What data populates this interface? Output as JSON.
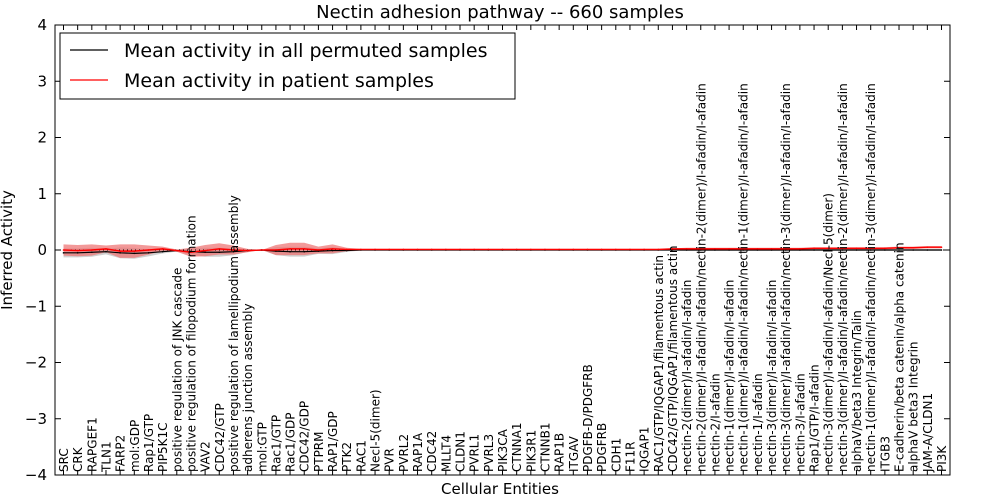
{
  "chart_data": {
    "type": "line",
    "title": "Nectin adhesion pathway -- 660 samples",
    "xlabel": "Cellular Entities",
    "ylabel": "Inferred Activity",
    "ylim": [
      -4,
      4
    ],
    "yticks": [
      -4,
      -3,
      -2,
      -1,
      0,
      1,
      2,
      3,
      4
    ],
    "legend_position": "upper-left",
    "colors": {
      "permuted": "#000000",
      "patient": "#ff0000",
      "band": "#ee7777",
      "band_permuted": "#b0b0b0"
    },
    "categories": [
      "SRC",
      "CRK",
      "RAPGEF1",
      "TLN1",
      "FARP2",
      "mol:GDP",
      "Rap1/GTP",
      "PIP5K1C",
      "positive regulation of JNK cascade",
      "positive regulation of filopodium formation",
      "VAV2",
      "CDC42/GTP",
      "positive regulation of lamellipodium assembly",
      "adherens junction assembly",
      "mol:GTP",
      "Rac1/GTP",
      "Rac1/GDP",
      "CDC42/GDP",
      "PTPRM",
      "RAP1/GDP",
      "PTK2",
      "RAC1",
      "Necl-5(dimer)",
      "PVR",
      "PVRL2",
      "RAP1A",
      "CDC42",
      "MLLT4",
      "CLDN1",
      "PVRL1",
      "PVRL3",
      "PIK3CA",
      "CTNNA1",
      "PIK3R1",
      "CTNNB1",
      "RAP1B",
      "ITGAV",
      "PDGFB-D/PDGFRB",
      "PDGFRB",
      "CDH1",
      "F11R",
      "IQGAP1",
      "RAC1/GTP/IQGAP1/filamentous actin",
      "CDC42/GTP/IQGAP1/filamentous actin",
      "nectin-2(dimer)/I-afadin/I-afadin",
      "nectin-2(dimer)/I-afadin/I-afadin/nectin-2(dimer)/I-afadin/I-afadin",
      "nectin-2/I-afadin",
      "nectin-1(dimer)/I-afadin/I-afadin",
      "nectin-1(dimer)/I-afadin/I-afadin/nectin-1(dimer)/I-afadin/I-afadin",
      "nectin-1/I-afadin",
      "nectin-3(dimer)/I-afadin/I-afadin",
      "nectin-3(dimer)/I-afadin/I-afadin/nectin-3(dimer)/I-afadin/I-afadin",
      "nectin-3/I-afadin",
      "Rap1/GTP/I-afadin",
      "nectin-3(dimer)/I-afadin/I-afadin/Necl-5(dimer)",
      "nectin-3(dimer)/I-afadin/I-afadin/nectin-2(dimer)/I-afadin/I-afadin",
      "alphaV/beta3 Integrin/Talin",
      "nectin-1(dimer)/I-afadin/I-afadin/nectin-3(dimer)/I-afadin/I-afadin",
      "ITGB3",
      "E-cadherin/beta catenin/alpha catenin",
      "alphaV beta3 Integrin",
      "JAM-A/CLDN1",
      "PI3K"
    ],
    "series": [
      {
        "name": "Mean activity in all permuted samples",
        "values": [
          -0.05,
          -0.05,
          -0.04,
          -0.03,
          -0.05,
          -0.06,
          -0.05,
          -0.03,
          -0.01,
          -0.03,
          -0.04,
          -0.04,
          -0.03,
          -0.01,
          0.0,
          -0.02,
          -0.03,
          -0.03,
          -0.02,
          -0.01,
          -0.01,
          0,
          0,
          0,
          0,
          0,
          0,
          0,
          0,
          0,
          0,
          0,
          0,
          0,
          0,
          0,
          0,
          0,
          0,
          0,
          0,
          0,
          0,
          0,
          0,
          0,
          0,
          0,
          0,
          0,
          0,
          0,
          0,
          0,
          0,
          0,
          0,
          0,
          0,
          0,
          0,
          0,
          0
        ]
      },
      {
        "name": "Mean activity in patient samples",
        "values": [
          0.0,
          -0.01,
          0.0,
          0.02,
          -0.02,
          -0.02,
          0.0,
          0.02,
          -0.01,
          -0.04,
          -0.01,
          0.02,
          0.0,
          -0.01,
          0.0,
          0.0,
          0.02,
          0.02,
          0.0,
          0.02,
          0.01,
          0.01,
          0.01,
          0.01,
          0.01,
          0.01,
          0.01,
          0.01,
          0.01,
          0.01,
          0.01,
          0.01,
          0.01,
          0.01,
          0.01,
          0.01,
          0.01,
          0.01,
          0.01,
          0.01,
          0.01,
          0.01,
          0.01,
          0.02,
          0.02,
          0.02,
          0.02,
          0.02,
          0.02,
          0.02,
          0.02,
          0.02,
          0.02,
          0.03,
          0.03,
          0.03,
          0.03,
          0.03,
          0.03,
          0.04,
          0.04,
          0.05,
          0.05
        ]
      }
    ],
    "band_half_width": [
      0.1,
      0.1,
      0.1,
      0.06,
      0.12,
      0.12,
      0.08,
      0.04,
      0.02,
      0.08,
      0.1,
      0.1,
      0.08,
      0.03,
      0.0,
      0.09,
      0.11,
      0.11,
      0.06,
      0.08,
      0.03,
      0.01,
      0.01,
      0.01,
      0.01,
      0.01,
      0.01,
      0.01,
      0.01,
      0.01,
      0.01,
      0.01,
      0.01,
      0.01,
      0.01,
      0.01,
      0.01,
      0.01,
      0.01,
      0.01,
      0.01,
      0.01,
      0.01,
      0.01,
      0.02,
      0.02,
      0.02,
      0.02,
      0.02,
      0.02,
      0.02,
      0.02,
      0.02,
      0.02,
      0.02,
      0.02,
      0.02,
      0.02,
      0.02,
      0.02,
      0.02,
      0.02,
      0.02
    ]
  }
}
